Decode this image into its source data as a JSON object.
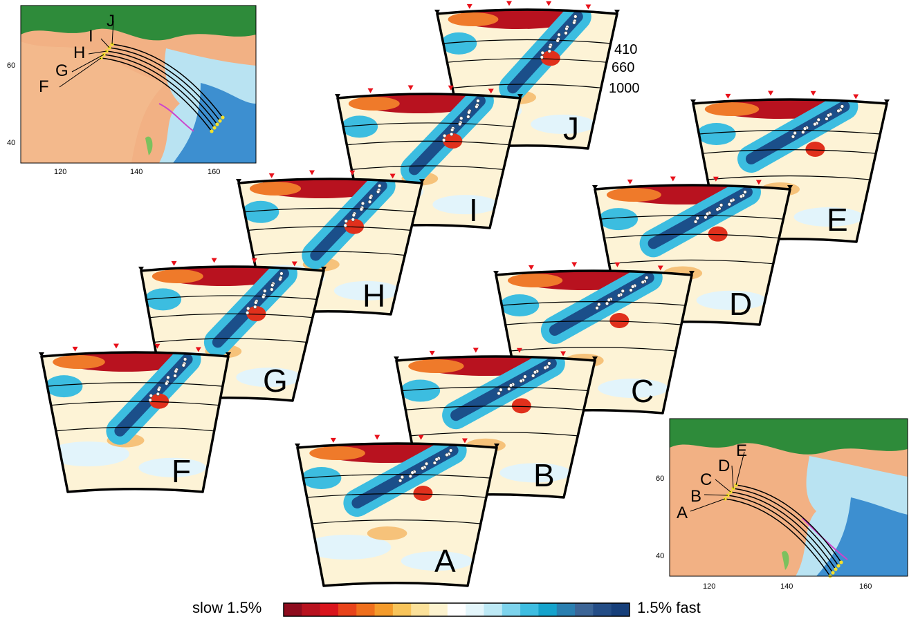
{
  "sections_order": [
    "J",
    "I",
    "H",
    "G",
    "F",
    "E",
    "D",
    "C",
    "B",
    "A"
  ],
  "sections": {
    "J": {
      "label": "J"
    },
    "I": {
      "label": "I"
    },
    "H": {
      "label": "H"
    },
    "G": {
      "label": "G"
    },
    "F": {
      "label": "F"
    },
    "E": {
      "label": "E"
    },
    "D": {
      "label": "D"
    },
    "C": {
      "label": "C"
    },
    "B": {
      "label": "B"
    },
    "A": {
      "label": "A"
    }
  },
  "depth_labels": [
    "410",
    "660",
    "1000"
  ],
  "map_north": {
    "profile_labels": [
      "F",
      "G",
      "H",
      "I",
      "J"
    ],
    "x_ticks": [
      "120",
      "140",
      "160"
    ],
    "y_ticks": [
      "60",
      "40"
    ]
  },
  "map_south": {
    "profile_labels": [
      "A",
      "B",
      "C",
      "D",
      "E"
    ],
    "x_ticks": [
      "120",
      "140",
      "160"
    ],
    "y_ticks": [
      "60",
      "40"
    ]
  },
  "colorbar": {
    "left_label": "slow 1.5%",
    "right_label": "1.5% fast",
    "colors": [
      "#8e0c1e",
      "#b8121f",
      "#d9141c",
      "#e8431a",
      "#ef6f1c",
      "#f49b2b",
      "#f8c45a",
      "#fbe19a",
      "#fdf3cf",
      "#ffffff",
      "#e4f6fb",
      "#bde9f5",
      "#7dd3ec",
      "#3ebde1",
      "#15a3cc",
      "#2a7fb0",
      "#3c6596",
      "#244d86",
      "#163f7a"
    ]
  },
  "colors": {
    "slow": "#b8121f",
    "fast": "#1b4f8a",
    "station": "#e8101a",
    "quake": "#ffffff"
  }
}
